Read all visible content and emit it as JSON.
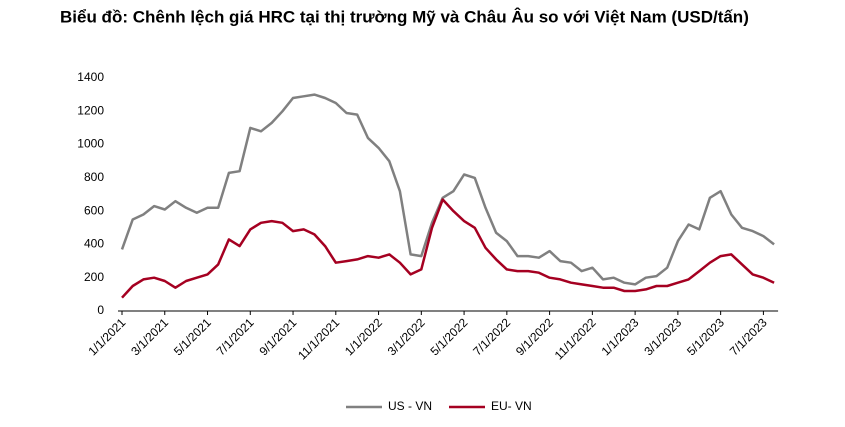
{
  "chart_data": {
    "type": "line",
    "title": "Biểu đồ: Chênh lệch giá HRC tại thị trường Mỹ và Châu Âu so với Việt Nam (USD/tấn)",
    "categories": [
      "1/1/2021",
      null,
      null,
      null,
      "3/1/2021",
      null,
      null,
      null,
      "5/1/2021",
      null,
      null,
      null,
      "7/1/2021",
      null,
      null,
      null,
      "9/1/2021",
      null,
      null,
      null,
      "11/1/2021",
      null,
      null,
      null,
      "1/1/2022",
      null,
      null,
      null,
      "3/1/2022",
      null,
      null,
      null,
      "5/1/2022",
      null,
      null,
      null,
      "7/1/2022",
      null,
      null,
      null,
      "9/1/2022",
      null,
      null,
      null,
      "11/1/2022",
      null,
      null,
      null,
      "1/1/2023",
      null,
      null,
      null,
      "3/1/2023",
      null,
      null,
      null,
      "5/1/2023",
      null,
      null,
      null,
      "7/1/2023",
      null
    ],
    "series": [
      {
        "name": "US - VN",
        "color": "#808080",
        "values": [
          370,
          550,
          580,
          630,
          610,
          660,
          620,
          590,
          620,
          620,
          830,
          840,
          1100,
          1080,
          1130,
          1200,
          1280,
          1290,
          1300,
          1280,
          1250,
          1190,
          1180,
          1040,
          980,
          900,
          720,
          340,
          330,
          530,
          680,
          720,
          820,
          800,
          620,
          470,
          420,
          330,
          330,
          320,
          360,
          300,
          290,
          240,
          260,
          190,
          200,
          170,
          160,
          200,
          210,
          260,
          420,
          520,
          490,
          680,
          720,
          580,
          500,
          480,
          450,
          400
        ]
      },
      {
        "name": "EU- VN",
        "color": "#a50021",
        "values": [
          80,
          150,
          190,
          200,
          180,
          140,
          180,
          200,
          220,
          280,
          430,
          390,
          490,
          530,
          540,
          530,
          480,
          490,
          460,
          390,
          290,
          300,
          310,
          330,
          320,
          340,
          290,
          220,
          250,
          500,
          670,
          600,
          540,
          500,
          380,
          310,
          250,
          240,
          240,
          230,
          200,
          190,
          170,
          160,
          150,
          140,
          140,
          120,
          120,
          130,
          150,
          150,
          170,
          190,
          240,
          290,
          330,
          340,
          280,
          220,
          200,
          170
        ]
      }
    ],
    "ylim": [
      0,
      1400
    ],
    "yticks": [
      0,
      200,
      400,
      600,
      800,
      1000,
      1200,
      1400
    ],
    "legend": "bottom"
  }
}
